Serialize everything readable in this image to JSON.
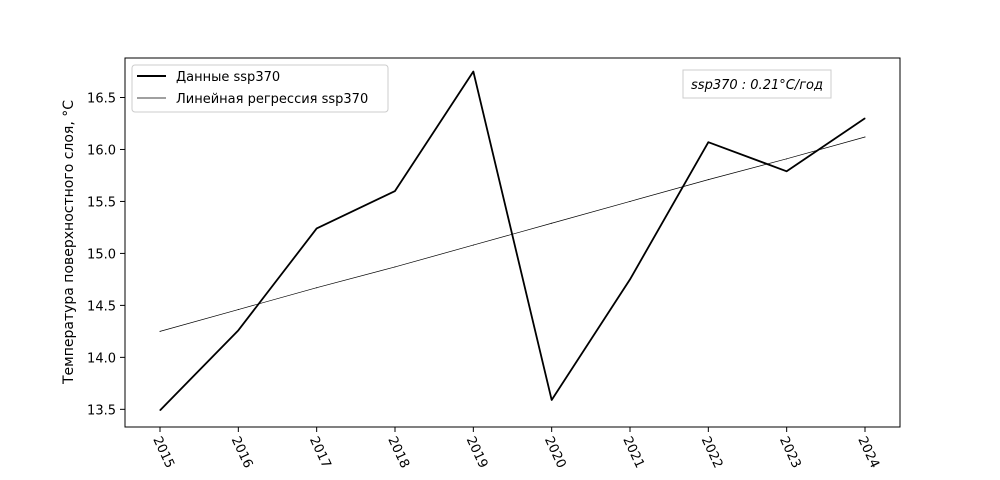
{
  "chart_data": {
    "type": "line",
    "x": [
      "2015",
      "2016",
      "2017",
      "2018",
      "2019",
      "2020",
      "2021",
      "2022",
      "2023",
      "2024"
    ],
    "series": [
      {
        "name": "Данные ssp370",
        "values": [
          13.49,
          14.26,
          15.24,
          15.6,
          16.75,
          13.59,
          14.75,
          16.07,
          15.79,
          16.3
        ],
        "color": "#000000",
        "style": "thick"
      },
      {
        "name": "Линейная регрессия ssp370",
        "values": [
          14.25,
          14.46,
          14.67,
          14.87,
          15.08,
          15.29,
          15.5,
          15.71,
          15.91,
          16.12
        ],
        "color": "#000000",
        "style": "thin"
      }
    ],
    "xlabel": "",
    "ylabel": "Температура поверхностного слоя, °C",
    "ylim": [
      13.33,
      16.88
    ],
    "yticks": [
      "13.5",
      "14.0",
      "14.5",
      "15.0",
      "15.5",
      "16.0",
      "16.5"
    ],
    "xtick_rotation": -65,
    "grid": false,
    "legend_position": "top-left",
    "annotation": "ssp370 : 0.21°C/год"
  }
}
